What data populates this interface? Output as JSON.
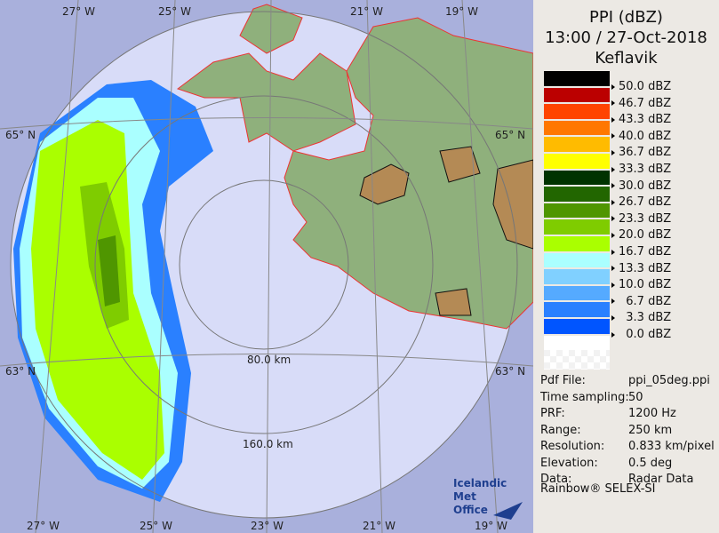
{
  "header": {
    "product": "PPI (dBZ)",
    "datetime": "13:00 / 27-Oct-2018",
    "station": "Keflavik"
  },
  "legend": [
    {
      "color": "#000000",
      "label": "50.0 dBZ"
    },
    {
      "color": "#bb0000",
      "label": "46.7 dBZ"
    },
    {
      "color": "#ff4400",
      "label": "43.3 dBZ"
    },
    {
      "color": "#ff7700",
      "label": "40.0 dBZ"
    },
    {
      "color": "#ffbb00",
      "label": "36.7 dBZ"
    },
    {
      "color": "#ffff00",
      "label": "33.3 dBZ"
    },
    {
      "color": "#003300",
      "label": "30.0 dBZ"
    },
    {
      "color": "#226600",
      "label": "26.7 dBZ"
    },
    {
      "color": "#4f9600",
      "label": "23.3 dBZ"
    },
    {
      "color": "#7fcc00",
      "label": "20.0 dBZ"
    },
    {
      "color": "#aaff00",
      "label": "16.7 dBZ"
    },
    {
      "color": "#aaffff",
      "label": "13.3 dBZ"
    },
    {
      "color": "#80d0ff",
      "label": "10.0 dBZ"
    },
    {
      "color": "#55aaff",
      "label": "  6.7 dBZ"
    },
    {
      "color": "#2a80ff",
      "label": "  3.3 dBZ"
    },
    {
      "color": "#0055ff",
      "label": "  0.0 dBZ"
    }
  ],
  "info": [
    {
      "key": "Pdf File:",
      "value": "ppi_05deg.ppi"
    },
    {
      "key": "Time sampling:",
      "value": "50"
    },
    {
      "key": "PRF:",
      "value": "1200 Hz"
    },
    {
      "key": "Range:",
      "value": "250 km"
    },
    {
      "key": "Resolution:",
      "value": "0.833 km/pixel"
    },
    {
      "key": "Elevation:",
      "value": "0.5 deg"
    },
    {
      "key": "Data:",
      "value": "Radar Data"
    }
  ],
  "credit": "Rainbow® SELEX-SI",
  "logo": {
    "line1": "Icelandic Met",
    "line2": "Office"
  },
  "map": {
    "range_rings": [
      "80.0 km",
      "160.0 km"
    ],
    "grid_top": [
      "27° W",
      "25° W",
      "21° W",
      "19° W"
    ],
    "grid_bottom": [
      "27° W",
      "25° W",
      "23° W",
      "21° W",
      "19° W"
    ],
    "grid_left": [
      "65° N",
      "63° N"
    ],
    "grid_right": [
      "65° N",
      "63° N"
    ]
  }
}
